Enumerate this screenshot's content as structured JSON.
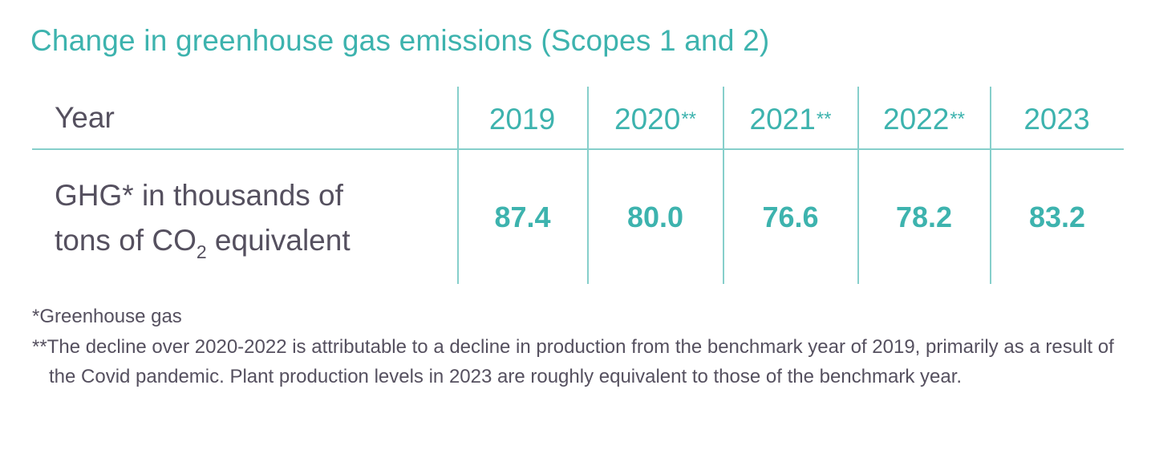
{
  "title": "Change in greenhouse gas emissions (Scopes 1 and 2)",
  "table": {
    "header_label": "Year",
    "years": [
      {
        "year": "2019",
        "mark": ""
      },
      {
        "year": "2020",
        "mark": "**"
      },
      {
        "year": "2021",
        "mark": "**"
      },
      {
        "year": "2022",
        "mark": "**"
      },
      {
        "year": "2023",
        "mark": ""
      }
    ],
    "row_label": {
      "line1": "GHG* in thousands of",
      "line2_before": "tons of CO",
      "line2_sub": "2",
      "line2_after": " equivalent"
    },
    "values": [
      "87.4",
      "80.0",
      "76.6",
      "78.2",
      "83.2"
    ]
  },
  "notes": {
    "note1": "*Greenhouse gas",
    "note2": "**The decline over 2020-2022 is attributable to a decline in production from the benchmark year of 2019, primarily as a result of the Covid pandemic. Plant production levels in 2023 are roughly equivalent to those of the benchmark year."
  },
  "colors": {
    "accent": "#3db3ae",
    "text": "#55505f",
    "rule": "#86cfcb"
  }
}
